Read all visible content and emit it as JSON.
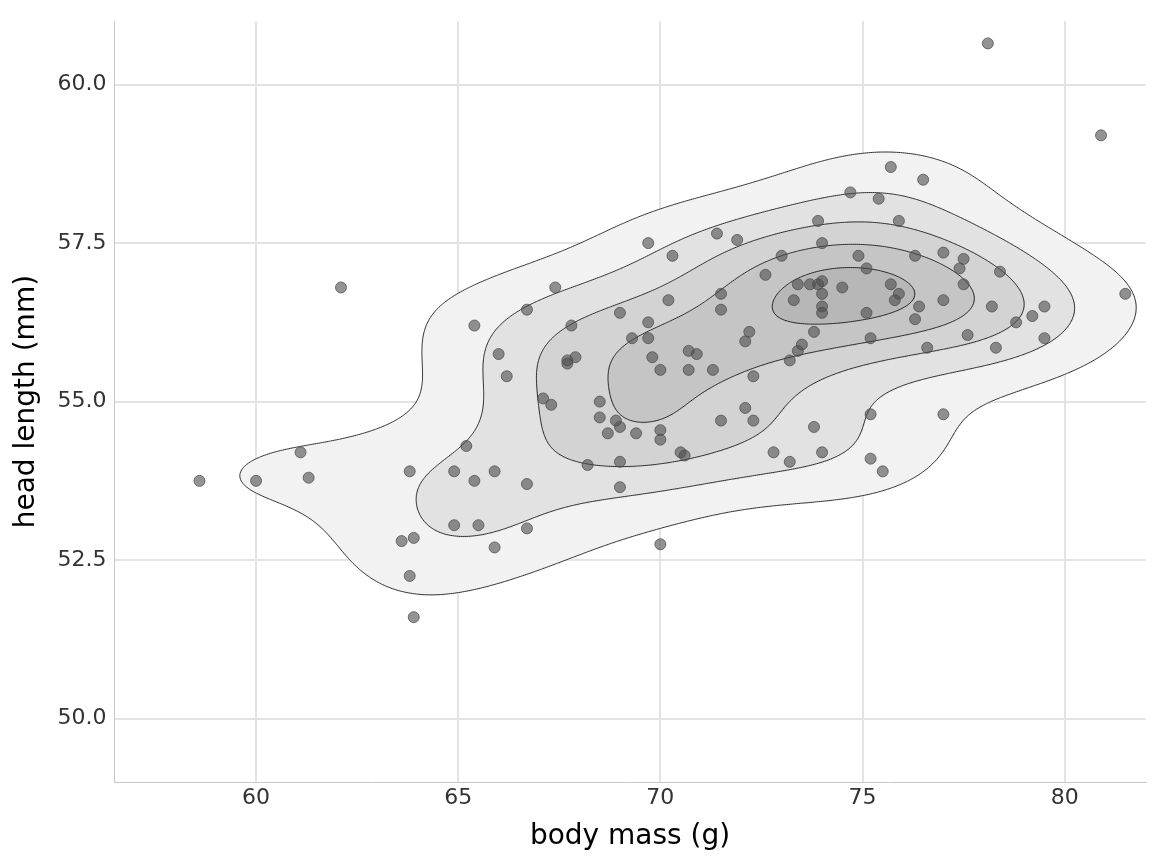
{
  "chart_data": {
    "type": "scatter",
    "x_label": "body mass (g)",
    "y_label": "head length (mm)",
    "x": [
      58.6,
      60.0,
      61.1,
      61.3,
      62.1,
      63.6,
      63.8,
      63.8,
      63.9,
      63.9,
      64.9,
      64.9,
      65.2,
      65.4,
      65.4,
      65.5,
      65.9,
      65.9,
      66.0,
      66.2,
      66.7,
      66.7,
      66.7,
      67.1,
      67.3,
      67.4,
      67.7,
      67.7,
      67.8,
      67.9,
      68.2,
      68.5,
      68.5,
      68.7,
      68.9,
      69.0,
      69.0,
      69.0,
      69.0,
      69.4,
      69.3,
      69.7,
      69.7,
      69.7,
      69.8,
      70.0,
      70.0,
      70.0,
      70.0,
      70.3,
      70.2,
      70.5,
      70.6,
      70.7,
      70.7,
      70.9,
      71.3,
      71.4,
      71.5,
      71.5,
      71.5,
      71.9,
      72.1,
      72.2,
      72.1,
      72.3,
      72.3,
      72.6,
      72.8,
      73.0,
      73.2,
      73.2,
      73.3,
      73.4,
      73.4,
      73.5,
      73.7,
      73.8,
      73.8,
      73.9,
      73.9,
      74.0,
      74.0,
      74.0,
      74.0,
      74.0,
      74.0,
      74.5,
      74.7,
      74.9,
      75.1,
      75.1,
      75.2,
      75.2,
      75.2,
      75.4,
      75.5,
      75.7,
      75.7,
      75.8,
      75.9,
      75.9,
      76.3,
      76.3,
      76.4,
      76.5,
      76.6,
      77.0,
      77.0,
      77.0,
      77.4,
      77.5,
      77.5,
      77.6,
      78.1,
      78.2,
      78.3,
      78.4,
      78.8,
      79.2,
      79.5,
      79.5,
      80.9,
      81.5
    ],
    "values": [
      53.75,
      53.75,
      54.2,
      53.8,
      56.8,
      52.8,
      53.9,
      52.25,
      52.85,
      51.6,
      53.9,
      53.05,
      54.3,
      56.2,
      53.75,
      53.05,
      53.9,
      52.7,
      55.75,
      55.4,
      56.45,
      53.7,
      53.0,
      55.05,
      54.95,
      56.8,
      55.65,
      55.6,
      56.2,
      55.7,
      54.0,
      55.0,
      54.75,
      54.5,
      54.7,
      54.6,
      54.05,
      53.65,
      56.4,
      54.5,
      56.0,
      57.5,
      56.25,
      56.0,
      55.7,
      55.5,
      54.55,
      54.4,
      52.75,
      57.3,
      56.6,
      54.2,
      54.15,
      55.8,
      55.5,
      55.75,
      55.5,
      57.65,
      56.7,
      56.45,
      54.7,
      57.55,
      55.95,
      56.1,
      54.9,
      54.7,
      55.4,
      57.0,
      54.2,
      57.3,
      55.65,
      54.05,
      56.6,
      56.85,
      55.8,
      55.9,
      56.85,
      56.1,
      54.6,
      57.85,
      56.85,
      56.7,
      56.4,
      56.5,
      56.9,
      57.5,
      54.2,
      56.8,
      58.3,
      57.3,
      57.1,
      56.4,
      56.0,
      54.8,
      54.1,
      58.2,
      53.9,
      58.7,
      56.85,
      56.6,
      56.7,
      57.85,
      56.3,
      57.3,
      56.5,
      58.5,
      55.85,
      57.35,
      56.6,
      54.8,
      57.1,
      57.25,
      56.85,
      56.05,
      60.65,
      56.5,
      55.85,
      57.05,
      56.25,
      56.35,
      56.5,
      56.0,
      59.2,
      56.7
    ],
    "color": "#4d4d4d",
    "marker": "circle",
    "xlim": [
      56.5,
      82
    ],
    "ylim": [
      49,
      61
    ],
    "xticks": [
      60,
      65,
      70,
      75,
      80
    ],
    "yticks": [
      {
        "value": 50,
        "label": "50.0"
      },
      {
        "value": 52.5,
        "label": "52.5"
      },
      {
        "value": 55,
        "label": "55.0"
      },
      {
        "value": 57.5,
        "label": "57.5"
      },
      {
        "value": 60,
        "label": "60.0"
      }
    ],
    "grid": true
  }
}
